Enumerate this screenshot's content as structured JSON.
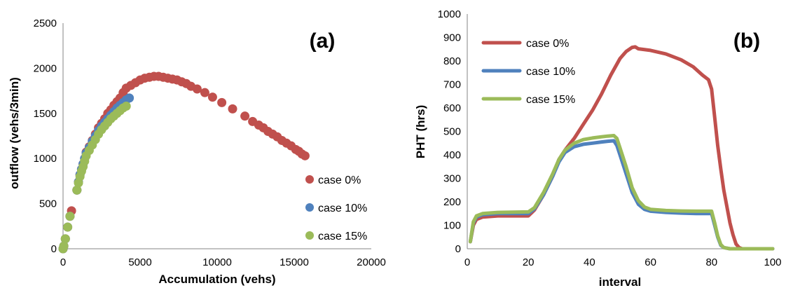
{
  "chart_data": [
    {
      "type": "scatter",
      "panel_label": "(a)",
      "xlabel": "Accumulation (vehs)",
      "ylabel": "outflow (vehs/3min)",
      "xlim": [
        0,
        20000
      ],
      "ylim": [
        0,
        2500
      ],
      "xticks": [
        "0",
        "5000",
        "10000",
        "15000",
        "20000"
      ],
      "yticks": [
        "0",
        "500",
        "1000",
        "1500",
        "2000",
        "2500"
      ],
      "grid": false,
      "legend": "right",
      "series": [
        {
          "name": "case 0%",
          "color": "#c0504d",
          "points": [
            [
              0,
              0
            ],
            [
              50,
              30
            ],
            [
              150,
              110
            ],
            [
              300,
              240
            ],
            [
              450,
              360
            ],
            [
              550,
              420
            ],
            [
              900,
              650
            ],
            [
              1000,
              740
            ],
            [
              1100,
              820
            ],
            [
              1200,
              880
            ],
            [
              1300,
              940
            ],
            [
              1400,
              1000
            ],
            [
              1500,
              1070
            ],
            [
              1700,
              1130
            ],
            [
              1900,
              1200
            ],
            [
              2100,
              1270
            ],
            [
              2300,
              1340
            ],
            [
              2500,
              1390
            ],
            [
              2700,
              1440
            ],
            [
              2900,
              1500
            ],
            [
              3100,
              1540
            ],
            [
              3300,
              1590
            ],
            [
              3500,
              1630
            ],
            [
              3700,
              1670
            ],
            [
              3900,
              1730
            ],
            [
              4100,
              1780
            ],
            [
              4400,
              1810
            ],
            [
              4700,
              1840
            ],
            [
              5000,
              1870
            ],
            [
              5300,
              1890
            ],
            [
              5600,
              1900
            ],
            [
              5900,
              1910
            ],
            [
              6200,
              1910
            ],
            [
              6500,
              1900
            ],
            [
              6800,
              1890
            ],
            [
              7100,
              1880
            ],
            [
              7400,
              1870
            ],
            [
              7700,
              1850
            ],
            [
              8000,
              1830
            ],
            [
              8300,
              1800
            ],
            [
              8700,
              1770
            ],
            [
              9200,
              1730
            ],
            [
              9700,
              1680
            ],
            [
              10300,
              1620
            ],
            [
              11000,
              1550
            ],
            [
              11800,
              1470
            ],
            [
              12300,
              1410
            ],
            [
              12700,
              1370
            ],
            [
              13000,
              1340
            ],
            [
              13300,
              1300
            ],
            [
              13600,
              1270
            ],
            [
              13900,
              1240
            ],
            [
              14200,
              1200
            ],
            [
              14500,
              1170
            ],
            [
              14800,
              1140
            ],
            [
              15100,
              1100
            ],
            [
              15300,
              1080
            ],
            [
              15500,
              1050
            ],
            [
              15700,
              1030
            ]
          ]
        },
        {
          "name": "case 10%",
          "color": "#4f81bd",
          "points": [
            [
              0,
              0
            ],
            [
              50,
              30
            ],
            [
              150,
              110
            ],
            [
              300,
              240
            ],
            [
              450,
              360
            ],
            [
              900,
              650
            ],
            [
              1000,
              740
            ],
            [
              1100,
              820
            ],
            [
              1200,
              880
            ],
            [
              1300,
              940
            ],
            [
              1400,
              1000
            ],
            [
              1500,
              1060
            ],
            [
              1700,
              1120
            ],
            [
              1900,
              1190
            ],
            [
              2100,
              1250
            ],
            [
              2300,
              1310
            ],
            [
              2500,
              1360
            ],
            [
              2700,
              1400
            ],
            [
              2900,
              1440
            ],
            [
              3100,
              1480
            ],
            [
              3300,
              1520
            ],
            [
              3500,
              1560
            ],
            [
              3700,
              1590
            ],
            [
              3900,
              1620
            ],
            [
              4100,
              1650
            ],
            [
              4300,
              1670
            ]
          ]
        },
        {
          "name": "case 15%",
          "color": "#9bbb59",
          "points": [
            [
              0,
              0
            ],
            [
              50,
              30
            ],
            [
              150,
              110
            ],
            [
              300,
              240
            ],
            [
              450,
              360
            ],
            [
              900,
              650
            ],
            [
              1000,
              730
            ],
            [
              1100,
              800
            ],
            [
              1200,
              860
            ],
            [
              1300,
              910
            ],
            [
              1400,
              970
            ],
            [
              1500,
              1030
            ],
            [
              1700,
              1090
            ],
            [
              1900,
              1150
            ],
            [
              2100,
              1210
            ],
            [
              2300,
              1270
            ],
            [
              2500,
              1320
            ],
            [
              2700,
              1360
            ],
            [
              2900,
              1400
            ],
            [
              3100,
              1440
            ],
            [
              3300,
              1470
            ],
            [
              3500,
              1500
            ],
            [
              3700,
              1530
            ],
            [
              3900,
              1560
            ],
            [
              4100,
              1580
            ]
          ]
        }
      ]
    },
    {
      "type": "line",
      "panel_label": "(b)",
      "xlabel": "interval",
      "ylabel": "PHT (hrs)",
      "xlim": [
        0,
        100
      ],
      "ylim": [
        0,
        1000
      ],
      "xticks": [
        "0",
        "20",
        "40",
        "60",
        "80",
        "100"
      ],
      "yticks": [
        "0",
        "100",
        "200",
        "300",
        "400",
        "500",
        "600",
        "700",
        "800",
        "900",
        "1000"
      ],
      "grid": false,
      "legend": "top-left",
      "series": [
        {
          "name": "case 0%",
          "color": "#c0504d",
          "points": [
            [
              1,
              30
            ],
            [
              2,
              100
            ],
            [
              3,
              125
            ],
            [
              5,
              135
            ],
            [
              10,
              140
            ],
            [
              20,
              140
            ],
            [
              22,
              165
            ],
            [
              25,
              230
            ],
            [
              28,
              310
            ],
            [
              30,
              380
            ],
            [
              32,
              420
            ],
            [
              35,
              470
            ],
            [
              38,
              530
            ],
            [
              41,
              590
            ],
            [
              44,
              660
            ],
            [
              47,
              740
            ],
            [
              50,
              810
            ],
            [
              52,
              840
            ],
            [
              54,
              858
            ],
            [
              55,
              860
            ],
            [
              56,
              852
            ],
            [
              60,
              845
            ],
            [
              65,
              830
            ],
            [
              70,
              805
            ],
            [
              74,
              775
            ],
            [
              77,
              740
            ],
            [
              79,
              720
            ],
            [
              80,
              680
            ],
            [
              81,
              560
            ],
            [
              82,
              440
            ],
            [
              83,
              340
            ],
            [
              84,
              250
            ],
            [
              85,
              180
            ],
            [
              86,
              110
            ],
            [
              87,
              60
            ],
            [
              88,
              20
            ],
            [
              89,
              5
            ],
            [
              90,
              0
            ],
            [
              100,
              0
            ]
          ]
        },
        {
          "name": "case 10%",
          "color": "#4f81bd",
          "points": [
            [
              1,
              30
            ],
            [
              2,
              110
            ],
            [
              3,
              135
            ],
            [
              5,
              145
            ],
            [
              10,
              150
            ],
            [
              20,
              150
            ],
            [
              22,
              170
            ],
            [
              25,
              230
            ],
            [
              28,
              310
            ],
            [
              30,
              370
            ],
            [
              32,
              410
            ],
            [
              35,
              435
            ],
            [
              38,
              445
            ],
            [
              41,
              450
            ],
            [
              44,
              455
            ],
            [
              46,
              458
            ],
            [
              48,
              460
            ],
            [
              49,
              440
            ],
            [
              50,
              400
            ],
            [
              52,
              320
            ],
            [
              54,
              240
            ],
            [
              56,
              190
            ],
            [
              58,
              168
            ],
            [
              60,
              160
            ],
            [
              65,
              155
            ],
            [
              70,
              152
            ],
            [
              75,
              150
            ],
            [
              79,
              150
            ],
            [
              80,
              150
            ],
            [
              81,
              100
            ],
            [
              82,
              50
            ],
            [
              83,
              15
            ],
            [
              84,
              5
            ],
            [
              86,
              0
            ],
            [
              100,
              0
            ]
          ]
        },
        {
          "name": "case 15%",
          "color": "#9bbb59",
          "points": [
            [
              1,
              30
            ],
            [
              2,
              115
            ],
            [
              3,
              140
            ],
            [
              5,
              150
            ],
            [
              10,
              155
            ],
            [
              20,
              157
            ],
            [
              22,
              175
            ],
            [
              25,
              240
            ],
            [
              28,
              320
            ],
            [
              30,
              380
            ],
            [
              32,
              420
            ],
            [
              35,
              450
            ],
            [
              38,
              465
            ],
            [
              41,
              472
            ],
            [
              44,
              477
            ],
            [
              46,
              480
            ],
            [
              48,
              482
            ],
            [
              49,
              470
            ],
            [
              50,
              430
            ],
            [
              52,
              350
            ],
            [
              54,
              260
            ],
            [
              56,
              205
            ],
            [
              58,
              178
            ],
            [
              60,
              168
            ],
            [
              65,
              163
            ],
            [
              70,
              161
            ],
            [
              75,
              160
            ],
            [
              79,
              160
            ],
            [
              80,
              160
            ],
            [
              81,
              110
            ],
            [
              82,
              55
            ],
            [
              83,
              18
            ],
            [
              84,
              5
            ],
            [
              86,
              0
            ],
            [
              100,
              0
            ]
          ]
        }
      ]
    }
  ]
}
